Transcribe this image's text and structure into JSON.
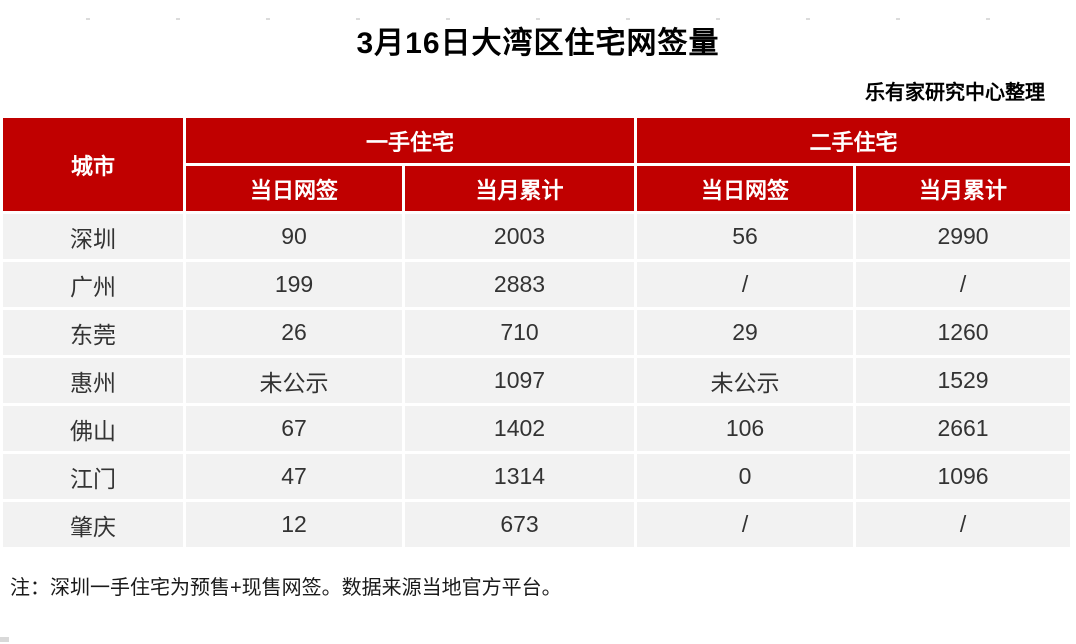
{
  "colors": {
    "header_red": "#C00000",
    "row_bg": "#F2F2F2",
    "header_text": "#FFFFFF",
    "body_text": "#333333"
  },
  "chart_data": {
    "type": "table",
    "title": "3月16日大湾区住宅网签量",
    "credit": "乐有家研究中心整理",
    "note": "注：深圳一手住宅为预售+现售网签。数据来源当地官方平台。",
    "header": {
      "city": "城市",
      "group1": {
        "label": "一手住宅",
        "sub1": "当日网签",
        "sub2": "当月累计"
      },
      "group2": {
        "label": "二手住宅",
        "sub1": "当日网签",
        "sub2": "当月累计"
      }
    },
    "columns": [
      "城市",
      "一手住宅 当日网签",
      "一手住宅 当月累计",
      "二手住宅 当日网签",
      "二手住宅 当月累计"
    ],
    "rows": [
      {
        "city": "深圳",
        "c1": "90",
        "c2": "2003",
        "c3": "56",
        "c4": "2990"
      },
      {
        "city": "广州",
        "c1": "199",
        "c2": "2883",
        "c3": "/",
        "c4": "/"
      },
      {
        "city": "东莞",
        "c1": "26",
        "c2": "710",
        "c3": "29",
        "c4": "1260"
      },
      {
        "city": "惠州",
        "c1": "未公示",
        "c2": "1097",
        "c3": "未公示",
        "c4": "1529"
      },
      {
        "city": "佛山",
        "c1": "67",
        "c2": "1402",
        "c3": "106",
        "c4": "2661"
      },
      {
        "city": "江门",
        "c1": "47",
        "c2": "1314",
        "c3": "0",
        "c4": "1096"
      },
      {
        "city": "肇庆",
        "c1": "12",
        "c2": "673",
        "c3": "/",
        "c4": "/"
      }
    ],
    "layout": {
      "header_rows": 2,
      "data_rows": 7,
      "grid": "white 3px separators",
      "header_align": "center",
      "cell_align": "center"
    }
  }
}
